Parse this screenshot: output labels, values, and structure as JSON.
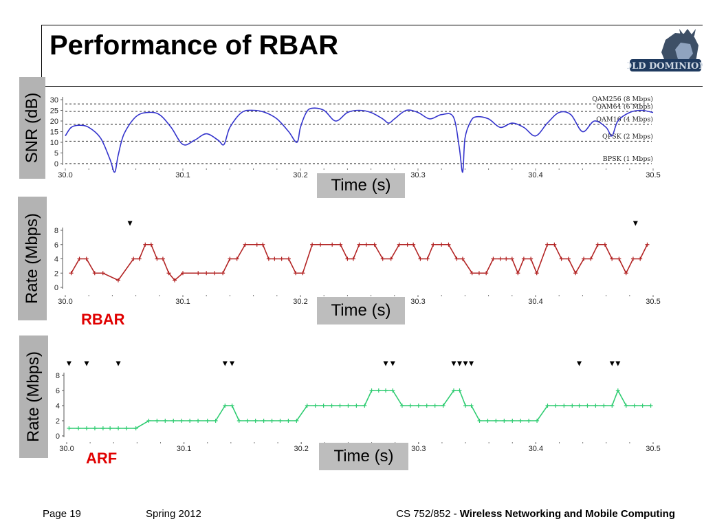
{
  "slide": {
    "title": "Performance of RBAR",
    "footer_page": "Page 19",
    "footer_term": "Spring 2012",
    "footer_course": "CS 752/852 - ",
    "footer_course_title": "Wireless Networking and Mobile Computing",
    "logo_text": "OLD DOMINION",
    "time_label": "Time (s)"
  },
  "chart_data": [
    {
      "type": "line",
      "ylabel": "SNR (dB)",
      "xlabel": "Time (s)",
      "xlim": [
        30.0,
        30.5
      ],
      "ylim": [
        0,
        30
      ],
      "x_ticks": [
        "30.0",
        "30.1",
        "30.2",
        "30.3",
        "30.4",
        "30.5"
      ],
      "y_ticks": [
        "0",
        "5",
        "10",
        "15",
        "20",
        "25",
        "30"
      ],
      "thresholds": [
        {
          "label": "QAM256 (8 Mbps)",
          "value": 28
        },
        {
          "label": "QAM64 (6 Mbps)",
          "value": 24.5
        },
        {
          "label": "QAM16 (4 Mbps)",
          "value": 18.5
        },
        {
          "label": "QPSK (2 Mbps)",
          "value": 10.5
        },
        {
          "label": "BPSK (1 Mbps)",
          "value": 0
        }
      ],
      "color": "#3333cc",
      "series": [
        {
          "x": [
            30.0,
            30.005,
            30.012,
            30.02,
            30.03,
            30.038,
            30.042,
            30.045,
            30.05,
            30.06,
            30.07,
            30.08,
            30.09,
            30.1,
            30.11,
            30.12,
            30.13,
            30.135,
            30.14,
            30.15,
            30.16,
            30.17,
            30.18,
            30.19,
            30.197,
            30.2,
            30.205,
            30.21,
            30.22,
            30.23,
            30.24,
            30.25,
            30.26,
            30.27,
            30.275,
            30.28,
            30.29,
            30.3,
            30.31,
            30.32,
            30.33,
            30.335,
            30.338,
            30.34,
            30.345,
            30.35,
            30.36,
            30.37,
            30.38,
            30.39,
            30.4,
            30.41,
            30.42,
            30.43,
            30.44,
            30.45,
            30.46,
            30.465,
            30.47,
            30.48,
            30.49,
            30.5
          ],
          "y": [
            13,
            17,
            18,
            17,
            12,
            2,
            -4,
            4,
            14,
            22,
            24,
            23,
            17,
            9,
            11,
            14,
            11,
            9,
            17,
            24,
            25,
            24,
            21,
            15,
            10,
            17,
            24,
            26,
            25,
            20,
            24,
            25,
            24,
            21,
            19,
            21,
            25,
            24,
            21,
            23,
            22,
            8,
            -4,
            12,
            20,
            22,
            21,
            17,
            19,
            17,
            13,
            19,
            24,
            23,
            15,
            20,
            17,
            13,
            20,
            24,
            25,
            24
          ]
        }
      ]
    },
    {
      "type": "line",
      "title": "RBAR",
      "ylabel": "Rate (Mbps)",
      "xlabel": "Time (s)",
      "xlim": [
        30.0,
        30.5
      ],
      "ylim": [
        0,
        8
      ],
      "x_ticks": [
        "30.0",
        "30.1",
        "30.2",
        "30.3",
        "30.4",
        "30.5"
      ],
      "y_ticks": [
        "0",
        "2",
        "4",
        "6",
        "8"
      ],
      "color": "#b22222",
      "losses": [
        30.055,
        30.485
      ],
      "series": [
        {
          "x": [
            30.005,
            30.012,
            30.018,
            30.025,
            30.032,
            30.045,
            30.058,
            30.063,
            30.068,
            30.073,
            30.078,
            30.083,
            30.088,
            30.093,
            30.1,
            30.113,
            30.12,
            30.127,
            30.134,
            30.14,
            30.146,
            30.153,
            30.163,
            30.168,
            30.173,
            30.178,
            30.184,
            30.19,
            30.196,
            30.202,
            30.21,
            30.217,
            30.227,
            30.234,
            30.24,
            30.245,
            30.25,
            30.256,
            30.263,
            30.27,
            30.277,
            30.284,
            30.291,
            30.296,
            30.302,
            30.308,
            30.313,
            30.32,
            30.326,
            30.333,
            30.338,
            30.346,
            30.352,
            30.358,
            30.364,
            30.37,
            30.375,
            30.38,
            30.385,
            30.39,
            30.396,
            30.401,
            30.41,
            30.416,
            30.422,
            30.428,
            30.434,
            30.441,
            30.447,
            30.453,
            30.459,
            30.465,
            30.471,
            30.477,
            30.483,
            30.489,
            30.495
          ],
          "y": [
            2,
            4,
            4,
            2,
            2,
            1,
            4,
            4,
            6,
            6,
            4,
            4,
            2,
            1,
            2,
            2,
            2,
            2,
            2,
            4,
            4,
            6,
            6,
            6,
            4,
            4,
            4,
            4,
            2,
            2,
            6,
            6,
            6,
            6,
            4,
            4,
            6,
            6,
            6,
            4,
            4,
            6,
            6,
            6,
            4,
            4,
            6,
            6,
            6,
            4,
            4,
            2,
            2,
            2,
            4,
            4,
            4,
            4,
            2,
            4,
            4,
            2,
            6,
            6,
            4,
            4,
            2,
            4,
            4,
            6,
            6,
            4,
            4,
            2,
            4,
            4,
            6
          ]
        }
      ]
    },
    {
      "type": "line",
      "title": "ARF",
      "ylabel": "Rate (Mbps)",
      "xlabel": "Time (s)",
      "xlim": [
        30.0,
        30.5
      ],
      "ylim": [
        0,
        8
      ],
      "x_ticks": [
        "30.0",
        "30.1",
        "30.2",
        "30.3",
        "30.4",
        "30.5"
      ],
      "y_ticks": [
        "0",
        "2",
        "4",
        "6",
        "8"
      ],
      "color": "#2ecc71",
      "losses": [
        30.002,
        30.017,
        30.044,
        30.135,
        30.141,
        30.272,
        30.278,
        30.33,
        30.335,
        30.34,
        30.345,
        30.437,
        30.465,
        30.47
      ],
      "series": [
        {
          "x": [
            30.002,
            30.01,
            30.017,
            30.024,
            30.031,
            30.037,
            30.044,
            30.051,
            30.059,
            30.07,
            30.077,
            30.084,
            30.091,
            30.098,
            30.105,
            30.112,
            30.12,
            30.127,
            30.135,
            30.141,
            30.147,
            30.154,
            30.161,
            30.168,
            30.175,
            30.182,
            30.189,
            30.196,
            30.205,
            30.212,
            30.219,
            30.226,
            30.233,
            30.24,
            30.247,
            30.254,
            30.26,
            30.266,
            30.272,
            30.278,
            30.286,
            30.293,
            30.3,
            30.307,
            30.314,
            30.321,
            30.33,
            30.335,
            30.34,
            30.345,
            30.352,
            30.359,
            30.366,
            30.373,
            30.38,
            30.387,
            30.394,
            30.401,
            30.41,
            30.417,
            30.424,
            30.431,
            30.437,
            30.444,
            30.451,
            30.458,
            30.465,
            30.47,
            30.477,
            30.484,
            30.491,
            30.498
          ],
          "y": [
            1,
            1,
            1,
            1,
            1,
            1,
            1,
            1,
            1,
            2,
            2,
            2,
            2,
            2,
            2,
            2,
            2,
            2,
            4,
            4,
            2,
            2,
            2,
            2,
            2,
            2,
            2,
            2,
            4,
            4,
            4,
            4,
            4,
            4,
            4,
            4,
            6,
            6,
            6,
            6,
            4,
            4,
            4,
            4,
            4,
            4,
            6,
            6,
            4,
            4,
            2,
            2,
            2,
            2,
            2,
            2,
            2,
            2,
            4,
            4,
            4,
            4,
            4,
            4,
            4,
            4,
            4,
            6,
            4,
            4,
            4,
            4
          ]
        }
      ]
    }
  ]
}
